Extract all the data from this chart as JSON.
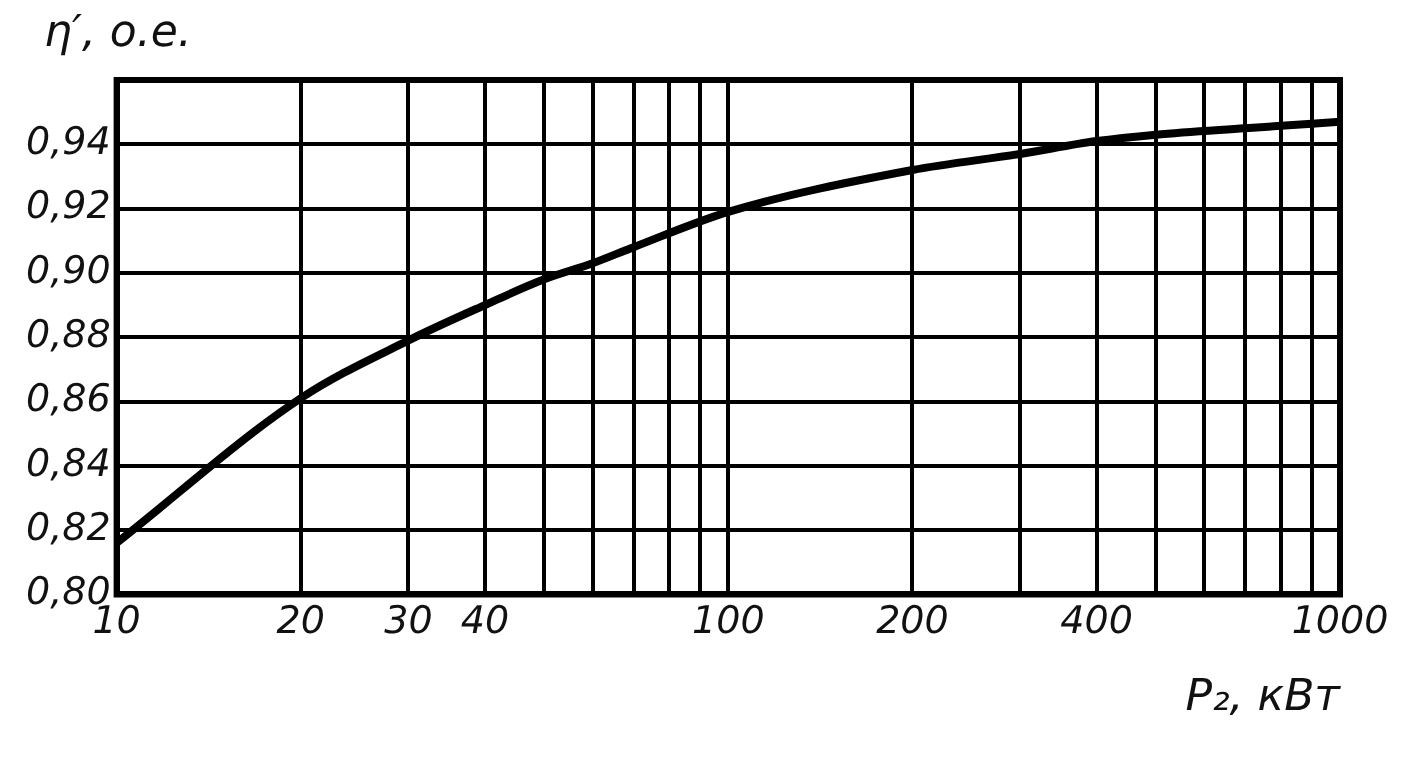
{
  "chart_data": {
    "type": "line",
    "xlabel": "P₂, кВт",
    "ylabel": "η′, о.е.",
    "log": "x",
    "xlim": [
      10,
      1000
    ],
    "xticks": [
      10,
      20,
      30,
      40,
      {
        "value": 50,
        "label": null
      },
      {
        "value": 60,
        "label": null
      },
      {
        "value": 70,
        "label": null
      },
      {
        "value": 80,
        "label": null
      },
      {
        "value": 90,
        "label": null
      },
      100,
      200,
      {
        "value": 300,
        "label": null
      },
      400,
      {
        "value": 500,
        "label": null
      },
      {
        "value": 600,
        "label": null
      },
      {
        "value": 700,
        "label": null
      },
      {
        "value": 800,
        "label": null
      },
      {
        "value": 900,
        "label": null
      },
      1000
    ],
    "ylim": [
      0.8,
      0.96
    ],
    "yticks": [
      {
        "value": 0.8,
        "label": "0,80"
      },
      {
        "value": 0.82,
        "label": "0,82"
      },
      {
        "value": 0.84,
        "label": "0,84"
      },
      {
        "value": 0.86,
        "label": "0,86"
      },
      {
        "value": 0.88,
        "label": "0,88"
      },
      {
        "value": 0.9,
        "label": "0,90"
      },
      {
        "value": 0.92,
        "label": "0,92"
      },
      {
        "value": 0.94,
        "label": "0,94"
      }
    ],
    "grid": true,
    "marker": "none",
    "line_style": "solid",
    "series": [
      {
        "color": "#000000",
        "x": [
          10,
          20,
          30,
          40,
          50,
          60,
          70,
          100,
          200,
          300,
          400,
          500,
          700,
          1000
        ],
        "values": [
          0.816,
          0.861,
          0.879,
          0.89,
          0.898,
          0.903,
          0.908,
          0.919,
          0.932,
          0.937,
          0.941,
          0.943,
          0.945,
          0.947
        ]
      }
    ]
  }
}
